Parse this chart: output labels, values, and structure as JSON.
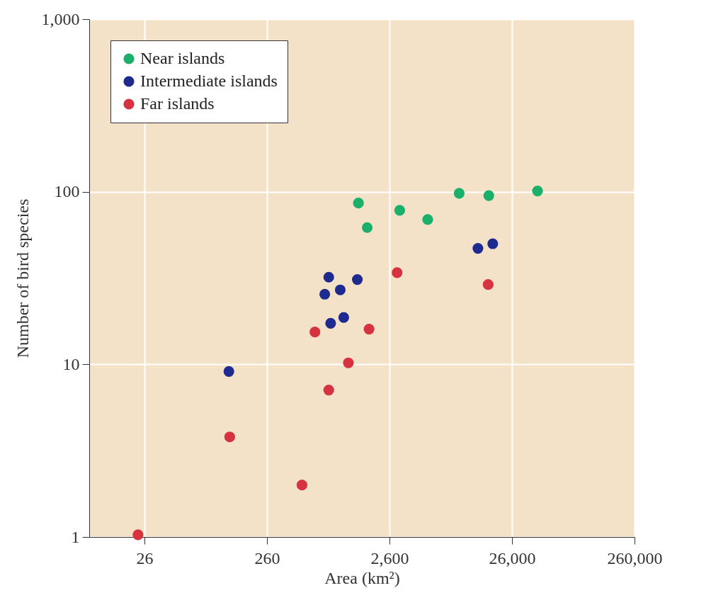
{
  "chart_data": {
    "type": "scatter",
    "xlabel": "Area (km²)",
    "ylabel": "Number of bird species",
    "log": "xy",
    "xlim": [
      9.2,
      260000
    ],
    "ylim": [
      1,
      1000
    ],
    "xticks": [
      26,
      260,
      {
        "value": 2600,
        "label": "2,600"
      },
      {
        "value": 26000,
        "label": "26,000"
      },
      {
        "value": 260000,
        "label": "260,000"
      }
    ],
    "yticks": [
      1,
      10,
      100,
      {
        "value": 1000,
        "label": "1,000"
      }
    ],
    "grid": true,
    "legend": "top left",
    "marker": "circle",
    "series": [
      {
        "name": "Near islands",
        "color": "#1bb06a",
        "x": [
          1450,
          1710,
          3150,
          5330,
          9630,
          16800,
          42000
        ],
        "values": [
          86,
          62,
          78,
          69,
          98,
          95,
          101
        ]
      },
      {
        "name": "Intermediate islands",
        "color": "#1f2a8f",
        "x": [
          13700,
          18100,
          830,
          1420,
          1030,
          770,
          1100,
          860,
          127
        ],
        "values": [
          47,
          50,
          32,
          31,
          27,
          25.5,
          18.7,
          17.3,
          9.1
        ]
      },
      {
        "name": "Far islands",
        "color": "#d6323f",
        "x": [
          3000,
          16600,
          640,
          1770,
          1200,
          830,
          129,
          502,
          23
        ],
        "values": [
          34,
          29,
          15.4,
          16,
          10.2,
          7.1,
          3.8,
          2,
          1.03
        ]
      }
    ]
  }
}
